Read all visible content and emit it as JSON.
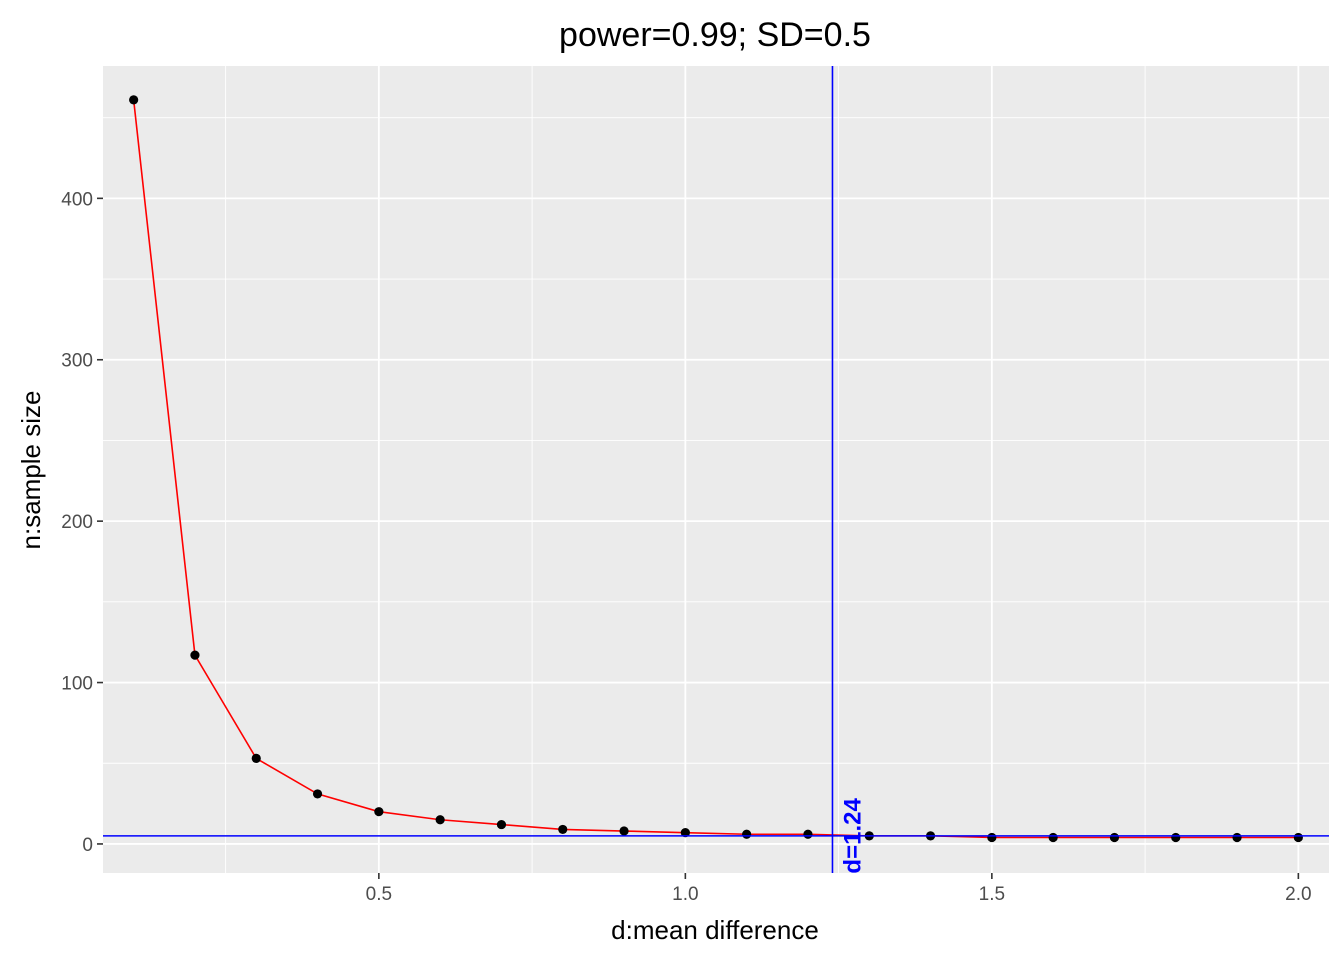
{
  "chart_data": {
    "type": "line",
    "title": "power=0.99; SD=0.5",
    "xlabel": "d:mean difference",
    "ylabel": "n:sample size",
    "xlim": [
      0.05,
      2.05
    ],
    "ylim": [
      -18,
      482
    ],
    "x_ticks": [
      0.5,
      1.0,
      1.5,
      2.0
    ],
    "x_tick_labels": [
      "0.5",
      "1.0",
      "1.5",
      "2.0"
    ],
    "y_ticks": [
      0,
      100,
      200,
      300,
      400
    ],
    "y_tick_labels": [
      "0",
      "100",
      "200",
      "300",
      "400"
    ],
    "grid": true,
    "series": [
      {
        "color": "#ff0000",
        "point_color": "#000000",
        "x": [
          0.1,
          0.2,
          0.3,
          0.4,
          0.5,
          0.6,
          0.7,
          0.8,
          0.9,
          1.0,
          1.1,
          1.2,
          1.3,
          1.4,
          1.5,
          1.6,
          1.7,
          1.8,
          1.9,
          2.0
        ],
        "y": [
          461,
          117,
          53,
          31,
          20,
          15,
          12,
          9,
          8,
          7,
          6,
          6,
          5,
          5,
          4,
          4,
          4,
          4,
          4,
          4
        ]
      }
    ],
    "reference_lines": {
      "color": "#0000ff",
      "vertical_x": 1.24,
      "horizontal_y": 5,
      "vertical_label": "d=1.24"
    },
    "colors": {
      "panel_background": "#ebebeb",
      "grid_major": "#ffffff"
    }
  }
}
